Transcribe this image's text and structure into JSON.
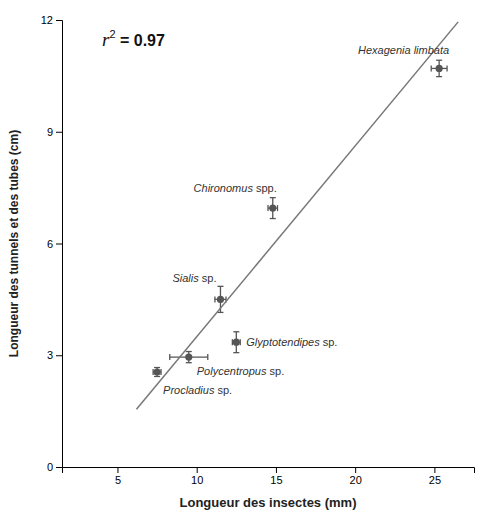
{
  "chart_data": {
    "type": "scatter",
    "xlabel": "Longueur des insectes (mm)",
    "ylabel": "Longueur des tunnels et des tubes (cm)",
    "series": [
      {
        "type": "scatter",
        "color": "#555555",
        "marker": "circle",
        "x": [
          7.5,
          9.5,
          11.5,
          12.5,
          14.8,
          25.3
        ],
        "values": [
          2.55,
          2.95,
          4.5,
          3.35,
          6.95,
          10.7
        ],
        "x_errors": [
          0.25,
          1.2,
          0.35,
          0.25,
          0.3,
          0.5
        ],
        "errors": [
          0.12,
          0.15,
          0.35,
          0.28,
          0.28,
          0.22
        ],
        "labels": [
          {
            "italic": "Procladius",
            "normal": " sp."
          },
          {
            "italic": "Polycentropus",
            "normal": " sp."
          },
          {
            "italic": "Sialis",
            "normal": " sp."
          },
          {
            "italic": "Glyptotendipes",
            "normal": " sp."
          },
          {
            "italic": "Chironomus",
            "normal": " spp."
          },
          {
            "italic": "Hexagenia limbata"
          }
        ]
      },
      {
        "type": "line",
        "color": "#777777",
        "line_style": "solid",
        "x": [
          6.2,
          26.5
        ],
        "values": [
          1.55,
          11.95
        ]
      }
    ],
    "annotation": {
      "italic": "r",
      "superscript": "2",
      "text": " = 0.97"
    },
    "xlim": [
      1.5,
      27.5
    ],
    "ylim": [
      0,
      12
    ],
    "xticks": [
      5,
      10,
      15,
      20,
      25
    ],
    "yticks": [
      0,
      3,
      6,
      9,
      12
    ],
    "grid": false
  }
}
